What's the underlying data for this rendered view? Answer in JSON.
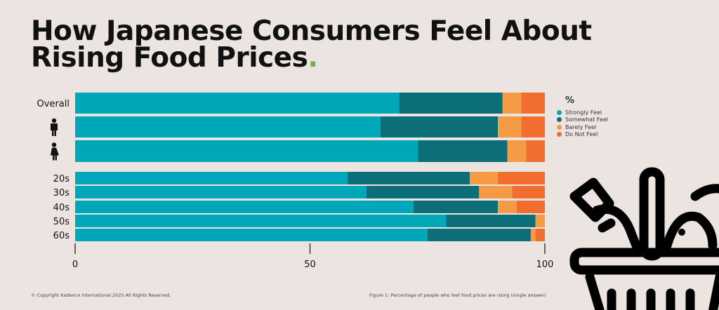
{
  "title": {
    "line1": "How Japanese Consumers Feel About",
    "line2": "Rising Food Prices",
    "dot": "."
  },
  "legend": {
    "title": "%",
    "items": [
      "Strongly Feel",
      "Somewhat Feel",
      "Barely Feel",
      "Do Not Feel"
    ]
  },
  "footer": {
    "copyright": "© Copyright Kadence International 2025 All Rights Reserved.",
    "caption": "Figure 1: Percentage of people who feel food prices are rising (single answer)"
  },
  "chart_data": {
    "type": "bar",
    "orientation": "horizontal",
    "stacked": true,
    "categories": [
      "Overall",
      "Male",
      "Female",
      "20s",
      "30s",
      "40s",
      "50s",
      "60s"
    ],
    "category_labels_shown": [
      "Overall",
      "male-icon",
      "female-icon",
      "20s",
      "30s",
      "40s",
      "50s",
      "60s"
    ],
    "xlim": [
      0,
      100
    ],
    "xticks": [
      "0",
      "50",
      "100"
    ],
    "ylabel": "",
    "xlabel": "",
    "legend_position": "right",
    "colors": [
      "#00a7b8",
      "#0c6e78",
      "#f59a45",
      "#f26d30"
    ],
    "series": [
      {
        "name": "Strongly Feel",
        "values": [
          69,
          65,
          73,
          58,
          62,
          72,
          79,
          75
        ]
      },
      {
        "name": "Somewhat Feel",
        "values": [
          22,
          25,
          19,
          26,
          24,
          18,
          19,
          22
        ]
      },
      {
        "name": "Barely Feel",
        "values": [
          4,
          5,
          4,
          6,
          7,
          4,
          2,
          1
        ]
      },
      {
        "name": "Do Not Feel",
        "values": [
          5,
          5,
          4,
          10,
          7,
          6,
          0,
          2
        ]
      }
    ]
  }
}
